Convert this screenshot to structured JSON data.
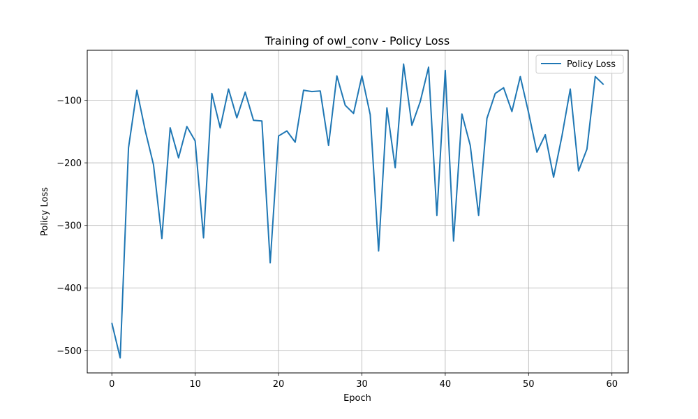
{
  "chart_data": {
    "type": "line",
    "title": "Training of owl_conv - Policy Loss",
    "xlabel": "Epoch",
    "ylabel": "Policy Loss",
    "xlim": [
      -2.95,
      61.95
    ],
    "ylim": [
      -536,
      -20
    ],
    "x_ticks": [
      0,
      10,
      20,
      30,
      40,
      50,
      60
    ],
    "y_ticks": [
      -500,
      -400,
      -300,
      -200,
      -100
    ],
    "grid": true,
    "legend_position": "top-right",
    "series": [
      {
        "name": "Policy Loss",
        "color": "#1f77b4",
        "x": [
          0,
          1,
          2,
          3,
          4,
          5,
          6,
          7,
          8,
          9,
          10,
          11,
          12,
          13,
          14,
          15,
          16,
          17,
          18,
          19,
          20,
          21,
          22,
          23,
          24,
          25,
          26,
          27,
          28,
          29,
          30,
          31,
          32,
          33,
          34,
          35,
          36,
          37,
          38,
          39,
          40,
          41,
          42,
          43,
          44,
          45,
          46,
          47,
          48,
          49,
          50,
          51,
          52,
          53,
          54,
          55,
          56,
          57,
          58,
          59
        ],
        "values": [
          -456,
          -512,
          -176,
          -84,
          -148,
          -203,
          -321,
          -144,
          -192,
          -142,
          -165,
          -320,
          -89,
          -144,
          -82,
          -128,
          -87,
          -132,
          -133,
          -360,
          -157,
          -149,
          -167,
          -84,
          -86,
          -85,
          -172,
          -61,
          -108,
          -121,
          -61,
          -123,
          -341,
          -112,
          -208,
          -42,
          -140,
          -102,
          -47,
          -284,
          -52,
          -325,
          -122,
          -172,
          -284,
          -129,
          -89,
          -80,
          -118,
          -62,
          -120,
          -183,
          -155,
          -223,
          -157,
          -82,
          -213,
          -178,
          -62,
          -75
        ]
      }
    ]
  }
}
